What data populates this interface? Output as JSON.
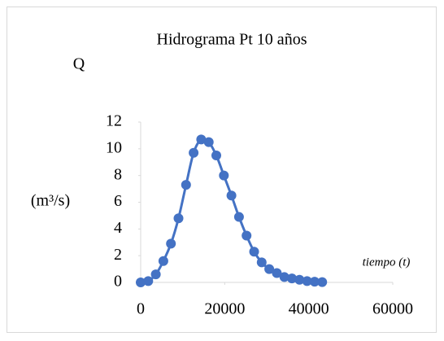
{
  "chart_data": {
    "type": "scatter",
    "title": "Hidrograma Pt  10 años",
    "y_label_top": "Q",
    "y_label": "(m³/s)",
    "x_label": "tiempo (t)",
    "series": [
      {
        "color": "#4472c4",
        "x": [
          0,
          1800,
          3600,
          5400,
          7200,
          9000,
          10800,
          12600,
          14400,
          16200,
          18000,
          19800,
          21600,
          23400,
          25200,
          27000,
          28800,
          30600,
          32400,
          34200,
          36000,
          37800,
          39600,
          41400,
          43200
        ],
        "values": [
          0,
          0.1,
          0.6,
          1.6,
          2.9,
          4.8,
          7.3,
          9.7,
          10.7,
          10.5,
          9.5,
          8.0,
          6.5,
          4.9,
          3.5,
          2.3,
          1.5,
          1.0,
          0.7,
          0.4,
          0.3,
          0.2,
          0.1,
          0.05,
          0.02
        ]
      }
    ],
    "xlim": [
      0,
      60000
    ],
    "xticks": [
      0,
      20000,
      40000,
      60000
    ],
    "ylim": [
      0,
      12
    ],
    "yticks": [
      0,
      2,
      4,
      6,
      8,
      10,
      12
    ]
  }
}
